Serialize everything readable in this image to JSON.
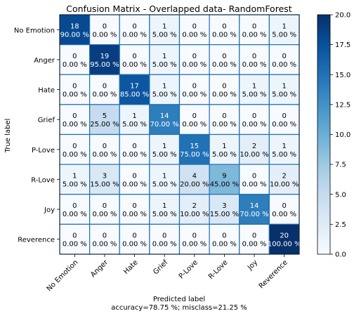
{
  "chart_data": {
    "type": "heatmap",
    "title": "Confusion Matrix - Overlapped data- RandomForest",
    "ylabel": "True label",
    "xlabel": "Predicted label",
    "xlabel_sub": "accuracy=78.75 %; misclass=21.25 %",
    "labels": [
      "No Emotion",
      "Anger",
      "Hate",
      "Grief",
      "P-Love",
      "R-Love",
      "Joy",
      "Reverence"
    ],
    "counts": [
      [
        18,
        0,
        0,
        1,
        0,
        0,
        0,
        1
      ],
      [
        0,
        19,
        0,
        1,
        0,
        0,
        0,
        0
      ],
      [
        0,
        0,
        17,
        1,
        0,
        0,
        1,
        1
      ],
      [
        0,
        5,
        1,
        14,
        0,
        0,
        0,
        0
      ],
      [
        0,
        0,
        0,
        1,
        15,
        1,
        2,
        1
      ],
      [
        1,
        3,
        0,
        1,
        4,
        9,
        0,
        2
      ],
      [
        0,
        0,
        0,
        1,
        2,
        3,
        14,
        0
      ],
      [
        0,
        0,
        0,
        0,
        0,
        0,
        0,
        20
      ]
    ],
    "percents": [
      [
        "90.00 %",
        "0.00 %",
        "0.00 %",
        "5.00 %",
        "0.00 %",
        "0.00 %",
        "0.00 %",
        "5.00 %"
      ],
      [
        "0.00 %",
        "95.00 %",
        "0.00 %",
        "5.00 %",
        "0.00 %",
        "0.00 %",
        "0.00 %",
        "0.00 %"
      ],
      [
        "0.00 %",
        "0.00 %",
        "85.00 %",
        "5.00 %",
        "0.00 %",
        "0.00 %",
        "5.00 %",
        "5.00 %"
      ],
      [
        "0.00 %",
        "25.00 %",
        "5.00 %",
        "70.00 %",
        "0.00 %",
        "0.00 %",
        "0.00 %",
        "0.00 %"
      ],
      [
        "0.00 %",
        "0.00 %",
        "0.00 %",
        "5.00 %",
        "75.00 %",
        "5.00 %",
        "10.00 %",
        "5.00 %"
      ],
      [
        "5.00 %",
        "15.00 %",
        "0.00 %",
        "5.00 %",
        "20.00 %",
        "45.00 %",
        "0.00 %",
        "10.00 %"
      ],
      [
        "0.00 %",
        "0.00 %",
        "0.00 %",
        "5.00 %",
        "10.00 %",
        "15.00 %",
        "70.00 %",
        "0.00 %"
      ],
      [
        "0.00 %",
        "0.00 %",
        "0.00 %",
        "0.00 %",
        "0.00 %",
        "0.00 %",
        "0.00 %",
        "100.00 %"
      ]
    ],
    "colorbar": {
      "range": [
        0,
        20
      ],
      "ticks": [
        "0.0",
        "2.5",
        "5.0",
        "7.5",
        "10.0",
        "12.5",
        "15.0",
        "17.5",
        "20.0"
      ],
      "colormap": "Blues"
    },
    "grid": true
  }
}
